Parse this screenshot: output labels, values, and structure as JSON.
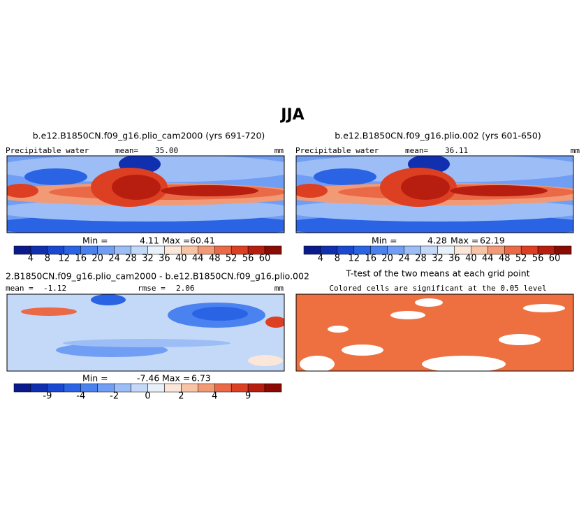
{
  "title": "JJA",
  "panels": [
    {
      "title": "b.e12.B1850CN.f09_g16.plio_cam2000 (yrs 691-720)",
      "variable": "Precipitable water",
      "mean_label": "mean=",
      "mean": "35.00",
      "units": "mm",
      "min_label": "Min =",
      "min": "4.11",
      "max_label": "Max =",
      "max": "60.41"
    },
    {
      "title": "b.e12.B1850CN.f09_g16.plio.002 (yrs 601-650)",
      "variable": "Precipitable water",
      "mean_label": "mean=",
      "mean": "36.11",
      "units": "mm",
      "min_label": "Min =",
      "min": "4.28",
      "max_label": "Max =",
      "max": "62.19"
    },
    {
      "title": "2.B1850CN.f09_g16.plio_cam2000 - b.e12.B1850CN.f09_g16.plio.002",
      "mean_label": "mean =",
      "mean": "-1.12",
      "rmse_label": "rmse =",
      "rmse": "2.06",
      "units": "mm",
      "min_label": "Min =",
      "min": "-7.46",
      "max_label": "Max =",
      "max": "6.73"
    },
    {
      "title": "T-test of the two means at each grid point",
      "subtitle": "Colored cells are significant at the 0.05 level"
    }
  ],
  "colorbars": [
    {
      "colors": [
        "#0a1a8c",
        "#1030b0",
        "#1a48d0",
        "#2a64e4",
        "#4a82f0",
        "#6f9ef4",
        "#9cbdf6",
        "#c4d8f8",
        "#e8f0fa",
        "#fbe6da",
        "#f8c4a8",
        "#f29a76",
        "#ea6a48",
        "#dd3f22",
        "#b81e10",
        "#8a0a04"
      ],
      "ticks": [
        "4",
        "8",
        "12",
        "16",
        "20",
        "24",
        "28",
        "32",
        "36",
        "40",
        "44",
        "48",
        "52",
        "56",
        "60"
      ]
    },
    {
      "colors": [
        "#0a1a8c",
        "#1030b0",
        "#1a48d0",
        "#2a64e4",
        "#4a82f0",
        "#6f9ef4",
        "#9cbdf6",
        "#c4d8f8",
        "#e8f0fa",
        "#fbe6da",
        "#f8c4a8",
        "#f29a76",
        "#ea6a48",
        "#dd3f22",
        "#b81e10",
        "#8a0a04"
      ],
      "ticks": [
        "4",
        "8",
        "12",
        "16",
        "20",
        "24",
        "28",
        "32",
        "36",
        "40",
        "44",
        "48",
        "52",
        "56",
        "60"
      ]
    },
    {
      "colors": [
        "#0a1a8c",
        "#1030b0",
        "#1a48d0",
        "#2a64e4",
        "#4a82f0",
        "#6f9ef4",
        "#9cbdf6",
        "#c4d8f8",
        "#e8f0fa",
        "#fbe6da",
        "#f8c4a8",
        "#f29a76",
        "#ea6a48",
        "#dd3f22",
        "#b81e10",
        "#8a0a04"
      ],
      "ticks": [
        "-9",
        "-4",
        "-2",
        "0",
        "2",
        "4",
        "9"
      ]
    }
  ]
}
